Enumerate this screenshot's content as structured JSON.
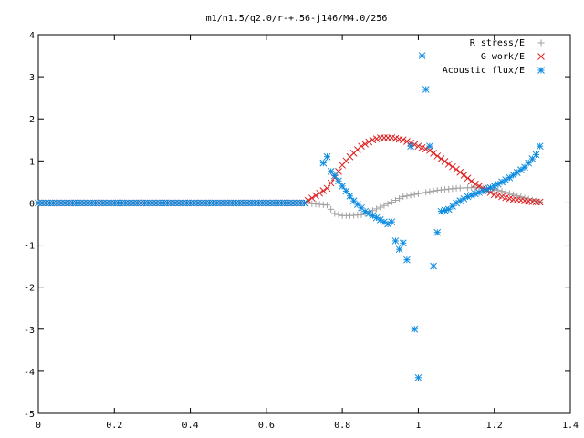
{
  "chart_data": {
    "type": "scatter",
    "title": "m1/n1.5/q2.0/r-+.56-j146/M4.0/256",
    "xlabel": "",
    "ylabel": "",
    "xlim": [
      0,
      1.4
    ],
    "ylim": [
      -5,
      4
    ],
    "x_ticks": [
      "0",
      "0.2",
      "0.4",
      "0.6",
      "0.8",
      "1",
      "1.2",
      "1.4"
    ],
    "y_ticks": [
      "4",
      "3",
      "2",
      "1",
      "0",
      "-1",
      "-2",
      "-3",
      "-4",
      "-5"
    ],
    "grid": false,
    "legend_position": "top-right",
    "series": [
      {
        "name": "R stress/E",
        "marker": "plus",
        "color": "#a0a0a0",
        "x": [
          0.0,
          0.1,
          0.2,
          0.3,
          0.4,
          0.5,
          0.6,
          0.7,
          0.76,
          0.78,
          0.8,
          0.82,
          0.85,
          0.88,
          0.9,
          0.93,
          0.96,
          1.0,
          1.05,
          1.1,
          1.15,
          1.2,
          1.25,
          1.3,
          1.32
        ],
        "y": [
          0.0,
          0.0,
          0.0,
          0.0,
          0.0,
          0.0,
          0.0,
          0.0,
          -0.05,
          -0.25,
          -0.3,
          -0.3,
          -0.28,
          -0.18,
          -0.1,
          0.02,
          0.15,
          0.22,
          0.3,
          0.35,
          0.37,
          0.33,
          0.2,
          0.07,
          0.02
        ]
      },
      {
        "name": "G work/E",
        "marker": "cross",
        "color": "#e02020",
        "x": [
          0.0,
          0.1,
          0.2,
          0.3,
          0.4,
          0.5,
          0.6,
          0.7,
          0.76,
          0.78,
          0.8,
          0.82,
          0.85,
          0.88,
          0.9,
          0.93,
          0.96,
          1.0,
          1.03,
          1.06,
          1.1,
          1.15,
          1.2,
          1.25,
          1.3,
          1.32
        ],
        "y": [
          0.0,
          0.0,
          0.0,
          0.0,
          0.0,
          0.0,
          0.0,
          0.0,
          0.35,
          0.6,
          0.9,
          1.1,
          1.35,
          1.5,
          1.55,
          1.55,
          1.5,
          1.35,
          1.25,
          1.05,
          0.8,
          0.45,
          0.2,
          0.08,
          0.03,
          0.02
        ]
      },
      {
        "name": "Acoustic flux/E",
        "marker": "star",
        "color": "#0a8ae0",
        "x": [
          0.0,
          0.1,
          0.2,
          0.3,
          0.4,
          0.5,
          0.6,
          0.7,
          0.75,
          0.76,
          0.77,
          0.78,
          0.8,
          0.83,
          0.86,
          0.9,
          0.92,
          0.93,
          0.94,
          0.95,
          0.96,
          0.97,
          0.98,
          0.99,
          1.0,
          1.01,
          1.02,
          1.03,
          1.04,
          1.05,
          1.06,
          1.08,
          1.1,
          1.13,
          1.16,
          1.2,
          1.24,
          1.28,
          1.31,
          1.32
        ],
        "y": [
          0.0,
          0.0,
          0.0,
          0.0,
          0.0,
          0.0,
          0.0,
          0.0,
          0.95,
          1.1,
          0.75,
          0.65,
          0.4,
          0.05,
          -0.2,
          -0.4,
          -0.5,
          -0.45,
          -0.9,
          -1.1,
          -0.95,
          -1.35,
          1.35,
          -3.0,
          -4.15,
          3.5,
          2.7,
          1.35,
          -1.5,
          -0.7,
          -0.2,
          -0.15,
          0.0,
          0.15,
          0.25,
          0.4,
          0.6,
          0.85,
          1.15,
          1.35
        ]
      }
    ]
  }
}
